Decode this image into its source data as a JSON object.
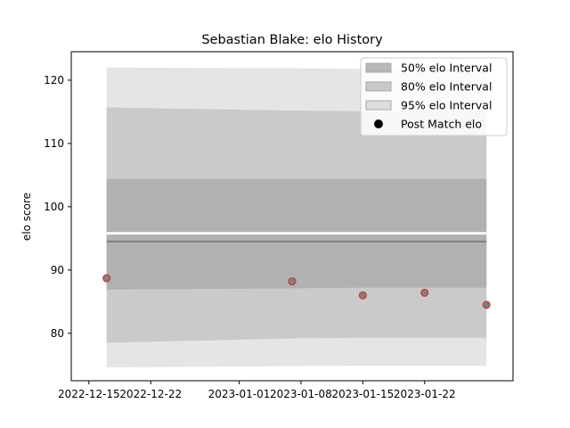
{
  "chart_data": {
    "type": "area",
    "title": "Sebastian Blake: elo History",
    "xlabel": "",
    "ylabel": "elo score",
    "x_ticks": [
      "2022-12-15",
      "2022-12-22",
      "2023-01-01",
      "2023-01-08",
      "2023-01-15",
      "2023-01-22"
    ],
    "y_ticks": [
      80,
      90,
      100,
      110,
      120
    ],
    "xlim": [
      "2022-12-13",
      "2023-02-01"
    ],
    "ylim": [
      72.5,
      124.5
    ],
    "legend_position": "top-right",
    "grid": false,
    "dates": [
      "2022-12-17",
      "2023-01-07",
      "2023-01-15",
      "2023-01-22",
      "2023-01-29"
    ],
    "mean_line": {
      "color": "#808080",
      "values": [
        94.5,
        94.5,
        94.5,
        94.5,
        94.5
      ]
    },
    "series": [
      {
        "name": "95% elo Interval",
        "color": "#d3d3d3",
        "lower": [
          74.6,
          74.8,
          74.9,
          74.9,
          74.9
        ],
        "upper": [
          122.0,
          121.9,
          121.8,
          121.8,
          121.7
        ]
      },
      {
        "name": "80% elo Interval",
        "color": "#b8b8b8",
        "lower": [
          78.5,
          79.2,
          79.3,
          79.3,
          79.3
        ],
        "upper": [
          115.7,
          115.2,
          115.1,
          115.0,
          115.0
        ]
      },
      {
        "name": "50% elo Interval",
        "color": "#a0a0a0",
        "lower": [
          86.9,
          87.1,
          87.2,
          87.2,
          87.2
        ],
        "upper": [
          104.4,
          104.4,
          104.4,
          104.4,
          104.4
        ]
      }
    ],
    "points": {
      "name": "Post Match elo",
      "values": [
        88.7,
        88.2,
        86.0,
        86.4,
        84.5
      ],
      "color": "#808080",
      "edge_color": "#d62728"
    },
    "gap": {
      "lower": 95.6,
      "upper": 96.0
    }
  }
}
